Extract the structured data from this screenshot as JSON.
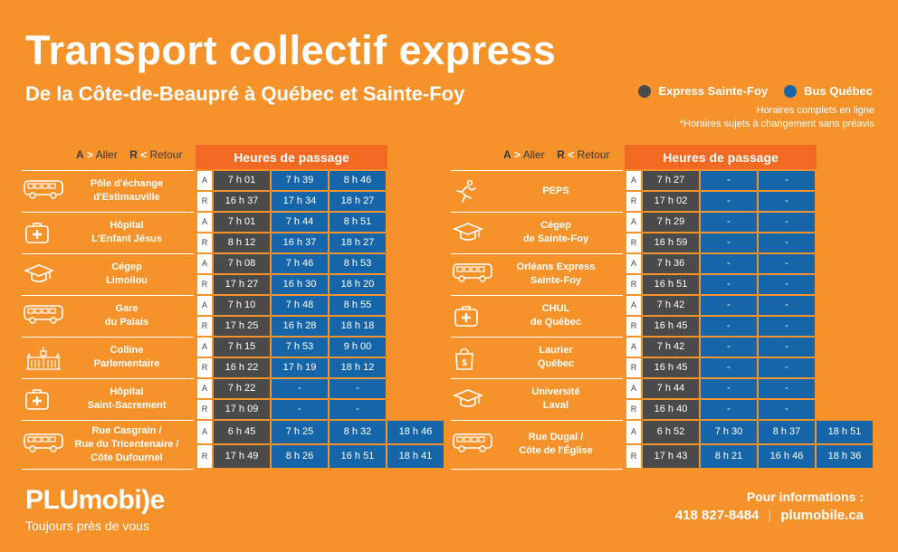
{
  "header": {
    "title": "Transport collectif express",
    "subtitle": "De la Côte-de-Beaupré à Québec et Sainte-Foy"
  },
  "legend": {
    "items": [
      {
        "label": "Express Sainte-Foy",
        "color": "#4A4A4A"
      },
      {
        "label": "Bus Québec",
        "color": "#1565A8"
      }
    ],
    "note1": "Horaires complets en ligne",
    "note2": "*Horaires sujets à changement sans préavis"
  },
  "direction": {
    "aller_letter": "A",
    "aller_label": "Aller",
    "retour_letter": "R",
    "retour_label": "Retour",
    "header": "Heures de passage"
  },
  "left_stops": [
    {
      "name": "Pôle d'échange\nd'Estimauville",
      "icon": "bus-icon",
      "A": [
        "7 h 01",
        "7 h 39",
        "8 h 46"
      ],
      "R": [
        "16 h 37",
        "17 h 34",
        "18 h 27"
      ]
    },
    {
      "name": "Hôpital\nL'Enfant Jésus",
      "icon": "hospital-icon",
      "A": [
        "7 h 01",
        "7 h 44",
        "8 h 51"
      ],
      "R": [
        "8 h 12",
        "16 h 37",
        "18 h 27"
      ]
    },
    {
      "name": "Cégep\nLimoilou",
      "icon": "graduation-cap-icon",
      "A": [
        "7 h 08",
        "7 h 46",
        "8 h 53"
      ],
      "R": [
        "17 h 27",
        "16 h 30",
        "18 h 20"
      ]
    },
    {
      "name": "Gare\ndu Palais",
      "icon": "bus-icon",
      "A": [
        "7 h 10",
        "7 h 48",
        "8 h 55"
      ],
      "R": [
        "17 h 25",
        "16 h 28",
        "18 h 18"
      ]
    },
    {
      "name": "Colline\nParlementaire",
      "icon": "parliament-icon",
      "A": [
        "7 h 15",
        "7 h 53",
        "9 h 00"
      ],
      "R": [
        "16 h 22",
        "17 h 19",
        "18 h 12"
      ]
    },
    {
      "name": "Hôpital\nSaint-Sacrement",
      "icon": "hospital-icon",
      "A": [
        "7 h 22",
        "-",
        "-"
      ],
      "R": [
        "17 h 09",
        "-",
        "-"
      ]
    },
    {
      "name": "Rue Casgrain /\nRue du Tricentenaire /\nCôte Dufournel",
      "icon": "bus-icon",
      "A": [
        "6 h 45",
        "7 h 25",
        "8 h 32",
        "18 h 46"
      ],
      "R": [
        "17 h 49",
        "8 h 26",
        "16 h 51",
        "18 h 41"
      ]
    }
  ],
  "right_stops": [
    {
      "name": "PEPS",
      "icon": "runner-icon",
      "A": [
        "7 h 27",
        "-",
        "-"
      ],
      "R": [
        "17 h 02",
        "-",
        "-"
      ]
    },
    {
      "name": "Cégep\nde Sainte-Foy",
      "icon": "graduation-cap-icon",
      "A": [
        "7 h 29",
        "-",
        "-"
      ],
      "R": [
        "16 h 59",
        "-",
        "-"
      ]
    },
    {
      "name": "Orléans Express\nSainte-Foy",
      "icon": "bus-icon",
      "A": [
        "7 h 36",
        "-",
        "-"
      ],
      "R": [
        "16 h 51",
        "-",
        "-"
      ]
    },
    {
      "name": "CHUL\nde Québec",
      "icon": "hospital-icon",
      "A": [
        "7 h 42",
        "-",
        "-"
      ],
      "R": [
        "16 h 45",
        "-",
        "-"
      ]
    },
    {
      "name": "Laurier\nQuébec",
      "icon": "shopping-bag-icon",
      "A": [
        "7 h 42",
        "-",
        "-"
      ],
      "R": [
        "16 h 45",
        "-",
        "-"
      ]
    },
    {
      "name": "Université\nLaval",
      "icon": "graduation-cap-icon",
      "A": [
        "7 h 44",
        "-",
        "-"
      ],
      "R": [
        "16 h 40",
        "-",
        "-"
      ]
    },
    {
      "name": "Rue Dugal /\nCôte de l'Église",
      "icon": "bus-icon",
      "A": [
        "6 h 52",
        "7 h 30",
        "8 h 37",
        "18 h 51"
      ],
      "R": [
        "17 h 43",
        "8 h 21",
        "16 h 46",
        "18 h 36"
      ]
    }
  ],
  "cell_colors": [
    "grey",
    "blue",
    "blue",
    "blue"
  ],
  "footer": {
    "logo": "PLUmobi)e",
    "tagline": "Toujours près de vous",
    "info_label": "Pour informations :",
    "phone": "418 827-8484",
    "website": "plumobile.ca"
  }
}
